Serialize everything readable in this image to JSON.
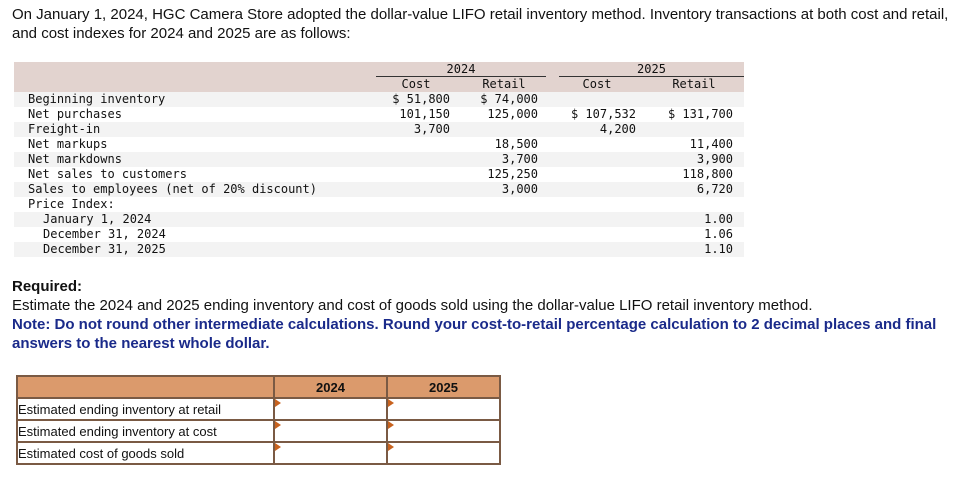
{
  "intro": "On January 1, 2024, HGC Camera Store adopted the dollar-value LIFO retail inventory method. Inventory transactions at both cost and retail, and cost indexes for 2024 and 2025 are as follows:",
  "data_table": {
    "years": [
      "2024",
      "2025"
    ],
    "subheaders": [
      "Cost",
      "Retail",
      "Cost",
      "Retail"
    ],
    "rows": [
      {
        "label": "Beginning inventory",
        "c1": "$ 51,800",
        "c2": "$ 74,000",
        "c3": "",
        "c4": ""
      },
      {
        "label": "Net purchases",
        "c1": "101,150",
        "c2": "125,000",
        "c3": "$ 107,532",
        "c4": "$ 131,700"
      },
      {
        "label": "Freight-in",
        "c1": "3,700",
        "c2": "",
        "c3": "4,200",
        "c4": ""
      },
      {
        "label": "Net markups",
        "c1": "",
        "c2": "18,500",
        "c3": "",
        "c4": "11,400"
      },
      {
        "label": "Net markdowns",
        "c1": "",
        "c2": "3,700",
        "c3": "",
        "c4": "3,900"
      },
      {
        "label": "Net sales to customers",
        "c1": "",
        "c2": "125,250",
        "c3": "",
        "c4": "118,800"
      },
      {
        "label": "Sales to employees (net of 20% discount)",
        "c1": "",
        "c2": "3,000",
        "c3": "",
        "c4": "6,720"
      },
      {
        "label": "Price Index:",
        "c1": "",
        "c2": "",
        "c3": "",
        "c4": ""
      },
      {
        "label": "January 1, 2024",
        "c1": "",
        "c2": "",
        "c3": "",
        "c4": "1.00"
      },
      {
        "label": "December 31, 2024",
        "c1": "",
        "c2": "",
        "c3": "",
        "c4": "1.06"
      },
      {
        "label": "December 31, 2025",
        "c1": "",
        "c2": "",
        "c3": "",
        "c4": "1.10"
      }
    ]
  },
  "required": {
    "title": "Required:",
    "text": "Estimate the 2024 and 2025 ending inventory and cost of goods sold using the dollar-value LIFO retail inventory method.",
    "note": "Note: Do not round other intermediate calculations. Round your cost-to-retail percentage calculation to 2 decimal places and final answers to the nearest whole dollar."
  },
  "answer_table": {
    "headers": [
      "",
      "2024",
      "2025"
    ],
    "rows": [
      {
        "label": "Estimated ending inventory at retail",
        "v2024": "",
        "v2025": ""
      },
      {
        "label": "Estimated ending inventory at cost",
        "v2024": "",
        "v2025": ""
      },
      {
        "label": "Estimated cost of goods sold",
        "v2024": "",
        "v2025": ""
      }
    ]
  },
  "colors": {
    "header_band": "#e2d3cf",
    "answer_header": "#db9a6c",
    "note_text": "#1a2a8a",
    "input_marker": "#c8621e"
  }
}
